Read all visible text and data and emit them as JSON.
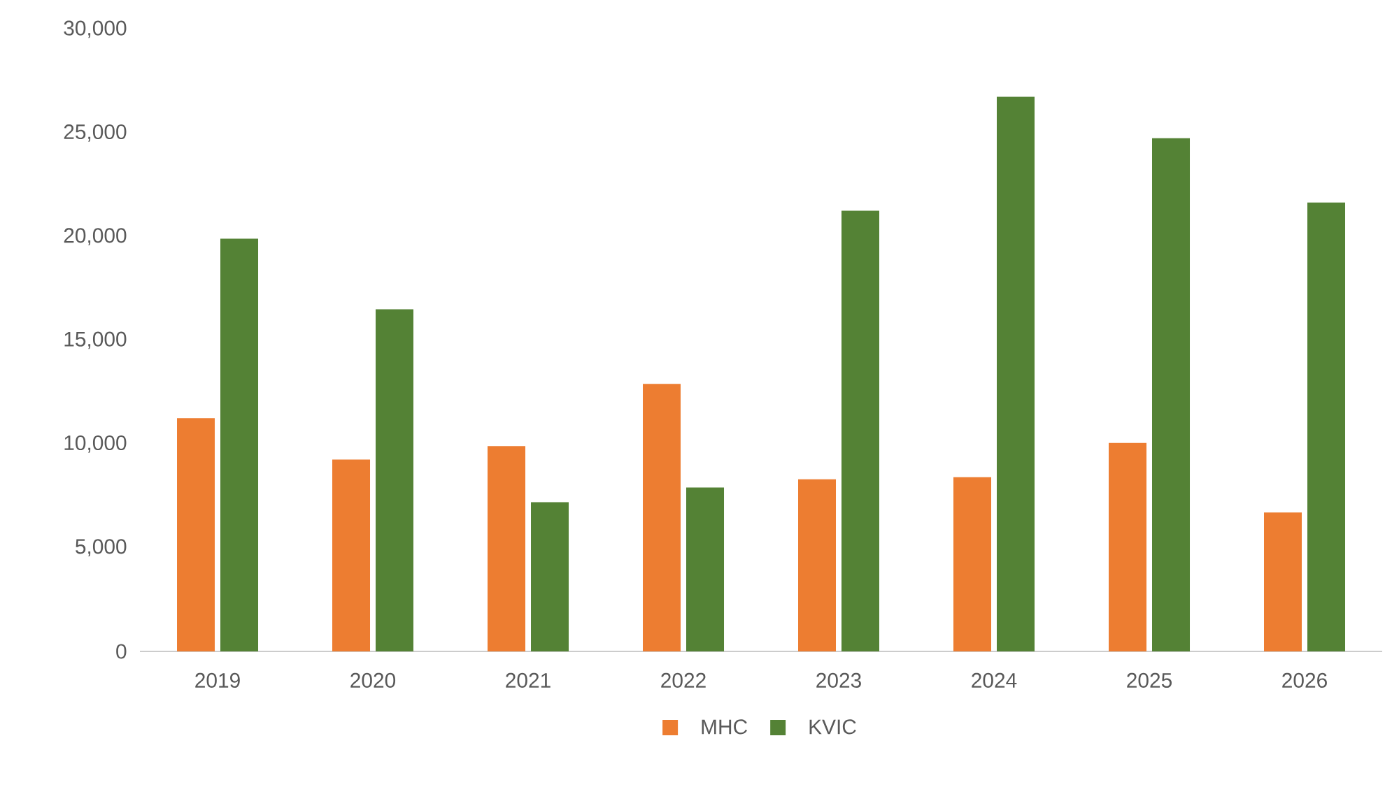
{
  "chart_data": {
    "type": "bar",
    "categories": [
      "2019",
      "2020",
      "2021",
      "2022",
      "2023",
      "2024",
      "2025",
      "2026"
    ],
    "series": [
      {
        "name": "MHC",
        "color": "#ed7d31",
        "values": [
          11250,
          9250,
          9900,
          12900,
          8300,
          8400,
          10050,
          6700
        ]
      },
      {
        "name": "KVIC",
        "color": "#548235",
        "values": [
          19900,
          16500,
          7200,
          7900,
          21250,
          26750,
          24750,
          21650
        ]
      }
    ],
    "ylim": [
      0,
      30000
    ],
    "yticks": [
      0,
      {
        "value": 5000,
        "label": "5,000"
      },
      {
        "value": 10000,
        "label": "10,000"
      },
      {
        "value": 15000,
        "label": "15,000"
      },
      {
        "value": 20000,
        "label": "20,000"
      },
      {
        "value": 25000,
        "label": "25,000"
      },
      {
        "value": 30000,
        "label": "30,000"
      }
    ],
    "grid": false,
    "legend": "bottom"
  }
}
